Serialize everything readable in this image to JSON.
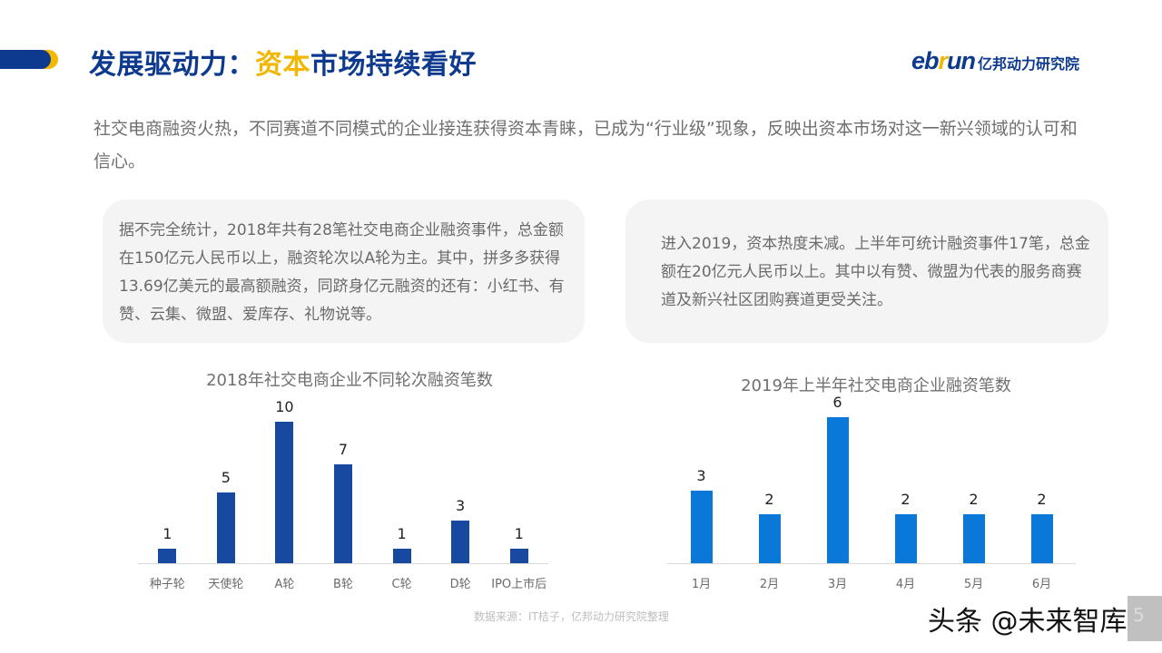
{
  "header": {
    "title_prefix": "发展驱动力：",
    "title_highlight": "资本",
    "title_suffix": "市场持续看好",
    "logo_en_prefix": "eb",
    "logo_en_r": "r",
    "logo_en_suffix": "un",
    "logo_cn": "亿邦动力研究院"
  },
  "intro": "社交电商融资火热，不同赛道不同模式的企业接连获得资本青睐，已成为“行业级”现象，反映出资本市场对这一新兴领域的认可和信心。",
  "cards": [
    {
      "text": "据不完全统计，2018年共有28笔社交电商企业融资事件，总金额在150亿元人民币以上，融资轮次以A轮为主。其中，拼多多获得13.69亿美元的最高额融资，同跻身亿元融资的还有：小红书、有赞、云集、微盟、爱库存、礼物说等。"
    },
    {
      "text": "进入2019，资本热度未减。上半年可统计融资事件17笔，总金额在20亿元人民币以上。其中以有赞、微盟为代表的服务商赛道及新兴社区团购赛道更受关注。"
    }
  ],
  "chart_data": [
    {
      "type": "bar",
      "title": "2018年社交电商企业不同轮次融资笔数",
      "categories": [
        "种子轮",
        "天使轮",
        "A轮",
        "B轮",
        "C轮",
        "D轮",
        "IPO上市后"
      ],
      "values": [
        1,
        5,
        10,
        7,
        1,
        3,
        1
      ],
      "labels": [
        "1",
        "5",
        "10",
        "7",
        "1",
        "3",
        "1"
      ],
      "color": "#1749a0",
      "xlabel": "",
      "ylabel": "",
      "ylim": [
        0,
        10
      ],
      "grid": false,
      "legend": "none",
      "data_labels": true
    },
    {
      "type": "bar",
      "title": "2019年上半年社交电商企业融资笔数",
      "categories": [
        "1月",
        "2月",
        "3月",
        "4月",
        "5月",
        "6月"
      ],
      "values": [
        3,
        2,
        6,
        2,
        2,
        2
      ],
      "labels": [
        "3",
        "2",
        "6",
        "2",
        "2",
        "2"
      ],
      "color": "#0a78d8",
      "xlabel": "",
      "ylabel": "",
      "ylim": [
        0,
        6
      ],
      "grid": false,
      "legend": "none",
      "data_labels": true
    }
  ],
  "footer": {
    "source": "数据来源：IT桔子，亿邦动力研究院整理",
    "watermark": "头条 @未来智库",
    "page_number": "5"
  },
  "colors": {
    "brand_blue": "#0d3a8e",
    "brand_yellow": "#f2b705",
    "bar_2018": "#1749a0",
    "bar_2019": "#0a78d8"
  }
}
